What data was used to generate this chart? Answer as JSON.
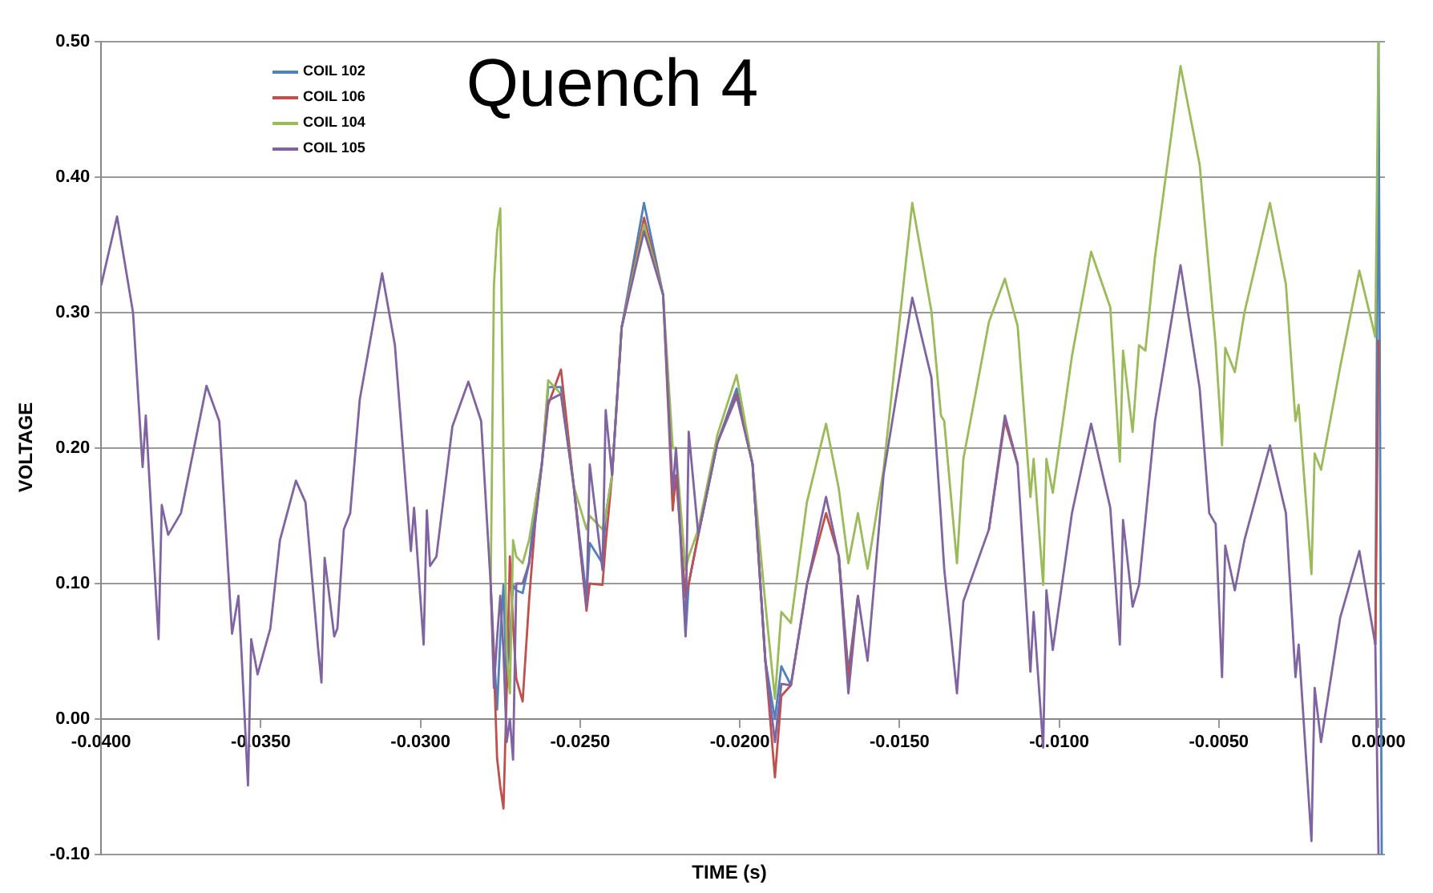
{
  "chart_data": {
    "type": "line",
    "title": "Quench 4",
    "xlabel": "TIME (s)",
    "ylabel": "VOLTAGE",
    "x": [
      -0.04,
      -0.0395,
      -0.039,
      -0.0387,
      -0.0386,
      -0.0384,
      -0.0382,
      -0.0381,
      -0.0379,
      -0.0375,
      -0.0367,
      -0.0363,
      -0.0359,
      -0.0357,
      -0.0356,
      -0.0354,
      -0.0353,
      -0.0351,
      -0.0347,
      -0.0344,
      -0.0339,
      -0.0336,
      -0.0332,
      -0.0331,
      -0.033,
      -0.0327,
      -0.0326,
      -0.0324,
      -0.0322,
      -0.0319,
      -0.0312,
      -0.0308,
      -0.0303,
      -0.0302,
      -0.0299,
      -0.0298,
      -0.0297,
      -0.0295,
      -0.029,
      -0.0285,
      -0.0281,
      -0.0278,
      -0.0277,
      -0.0276,
      -0.0275,
      -0.0274,
      -0.0273,
      -0.0272,
      -0.0271,
      -0.027,
      -0.0268,
      -0.0266,
      -0.0264,
      -0.0262,
      -0.026,
      -0.0256,
      -0.0252,
      -0.0248,
      -0.0247,
      -0.0243,
      -0.0242,
      -0.024,
      -0.0237,
      -0.023,
      -0.0224,
      -0.0221,
      -0.022,
      -0.0217,
      -0.0216,
      -0.0213,
      -0.0207,
      -0.0201,
      -0.0196,
      -0.0192,
      -0.0189,
      -0.0187,
      -0.0184,
      -0.0179,
      -0.0173,
      -0.0169,
      -0.0166,
      -0.0163,
      -0.016,
      -0.0155,
      -0.0146,
      -0.014,
      -0.0137,
      -0.0136,
      -0.0132,
      -0.013,
      -0.0122,
      -0.0117,
      -0.0113,
      -0.0109,
      -0.0108,
      -0.0105,
      -0.0104,
      -0.0102,
      -0.0096,
      -0.009,
      -0.0084,
      -0.0081,
      -0.008,
      -0.0077,
      -0.0075,
      -0.0073,
      -0.007,
      -0.0062,
      -0.0056,
      -0.0053,
      -0.0051,
      -0.0049,
      -0.0048,
      -0.0045,
      -0.0042,
      -0.0034,
      -0.0029,
      -0.0026,
      -0.0025,
      -0.0021,
      -0.002,
      -0.0018,
      -0.0012,
      -0.0006,
      -0.0001,
      0,
      0.0001
    ],
    "series": [
      {
        "name": "COIL 102",
        "color": "#4f81bd",
        "values": [
          null,
          null,
          null,
          null,
          null,
          null,
          null,
          null,
          null,
          null,
          null,
          null,
          null,
          null,
          null,
          null,
          null,
          null,
          null,
          null,
          null,
          null,
          null,
          null,
          null,
          null,
          null,
          null,
          null,
          null,
          null,
          null,
          null,
          null,
          null,
          null,
          null,
          null,
          null,
          null,
          null,
          0.099,
          0.05,
          0.007,
          0.06,
          0.099,
          0.023,
          0.06,
          0.099,
          0.095,
          0.093,
          0.115,
          0.16,
          0.188,
          0.245,
          0.245,
          0.172,
          0.09,
          0.13,
          0.115,
          0.15,
          0.18,
          0.289,
          0.381,
          0.313,
          null,
          null,
          0.061,
          0.1,
          0.136,
          0.204,
          0.244,
          0.188,
          0.043,
          0.0,
          0.039,
          0.025,
          null,
          null,
          0.12,
          0.035,
          0.091,
          null,
          null,
          null,
          null,
          null,
          null,
          null,
          null,
          null,
          null,
          null,
          null,
          null,
          null,
          null,
          null,
          null,
          null,
          null,
          null,
          null,
          null,
          null,
          null,
          null,
          null,
          null,
          null,
          null,
          null,
          null,
          null,
          null,
          null,
          null,
          null,
          null,
          null,
          null,
          null,
          null,
          null,
          0.055,
          0.5,
          -0.1
        ]
      },
      {
        "name": "COIL 106",
        "color": "#c0504d",
        "values": [
          null,
          null,
          null,
          null,
          null,
          null,
          null,
          null,
          null,
          null,
          null,
          null,
          null,
          null,
          null,
          null,
          null,
          null,
          null,
          null,
          null,
          null,
          null,
          null,
          null,
          null,
          null,
          null,
          null,
          null,
          null,
          null,
          null,
          null,
          null,
          null,
          null,
          null,
          null,
          null,
          null,
          0.099,
          0.04,
          -0.029,
          -0.05,
          -0.066,
          0.02,
          0.12,
          0.07,
          0.03,
          0.013,
          0.087,
          0.147,
          0.188,
          0.232,
          0.258,
          0.172,
          0.08,
          0.1,
          0.099,
          0.13,
          0.18,
          0.289,
          0.37,
          0.313,
          0.154,
          0.18,
          0.09,
          0.1,
          0.136,
          0.204,
          0.24,
          0.188,
          0.043,
          -0.043,
          0.017,
          0.025,
          0.099,
          0.152,
          0.12,
          0.03,
          0.091,
          null,
          null,
          null,
          null,
          null,
          null,
          null,
          null,
          0.14,
          0.22,
          0.188,
          null,
          null,
          null,
          null,
          null,
          null,
          null,
          null,
          null,
          null,
          null,
          null,
          null,
          null,
          null,
          null,
          null,
          null,
          null,
          null,
          null,
          null,
          null,
          null,
          null,
          null,
          null,
          null,
          null,
          null,
          null,
          0.055,
          0.28,
          null
        ]
      },
      {
        "name": "COIL 104",
        "color": "#9bbb59",
        "values": [
          null,
          null,
          null,
          null,
          null,
          null,
          null,
          null,
          null,
          null,
          null,
          null,
          null,
          null,
          null,
          null,
          null,
          null,
          null,
          null,
          null,
          null,
          null,
          null,
          null,
          null,
          null,
          null,
          null,
          null,
          null,
          null,
          null,
          null,
          null,
          null,
          null,
          null,
          null,
          null,
          null,
          0.099,
          0.32,
          0.36,
          0.377,
          0.2,
          0.05,
          0.019,
          0.132,
          0.12,
          0.115,
          0.132,
          0.16,
          0.188,
          0.25,
          0.24,
          0.172,
          0.14,
          0.15,
          0.14,
          0.15,
          0.18,
          0.289,
          0.365,
          0.313,
          0.2,
          0.2,
          0.11,
          0.12,
          0.14,
          0.21,
          0.254,
          0.188,
          0.085,
          0.015,
          0.079,
          0.071,
          0.16,
          0.218,
          0.17,
          0.115,
          0.152,
          0.111,
          0.184,
          0.381,
          0.301,
          0.224,
          0.22,
          0.115,
          0.192,
          0.293,
          0.325,
          0.29,
          0.164,
          0.192,
          0.099,
          0.192,
          0.167,
          0.268,
          0.345,
          0.304,
          0.19,
          0.272,
          0.212,
          0.276,
          0.272,
          0.341,
          0.482,
          0.409,
          0.329,
          0.276,
          0.202,
          0.274,
          0.256,
          0.3,
          0.381,
          0.321,
          0.22,
          0.232,
          0.107,
          0.196,
          0.184,
          0.26,
          0.331,
          0.282,
          0.5,
          null
        ]
      },
      {
        "name": "COIL 105",
        "color": "#8064a2",
        "values": [
          0.32,
          0.371,
          0.3,
          0.186,
          0.224,
          0.14,
          0.059,
          0.158,
          0.136,
          0.152,
          0.246,
          0.22,
          0.063,
          0.091,
          0.047,
          -0.049,
          0.059,
          0.033,
          0.067,
          0.132,
          0.176,
          0.16,
          0.051,
          0.027,
          0.119,
          0.061,
          0.067,
          0.14,
          0.152,
          0.236,
          0.329,
          0.276,
          0.124,
          0.156,
          0.055,
          0.154,
          0.113,
          0.12,
          0.216,
          0.249,
          0.22,
          0.099,
          0.023,
          0.06,
          0.091,
          0.05,
          -0.017,
          0.0,
          -0.03,
          0.1,
          0.1,
          0.115,
          0.147,
          0.188,
          0.235,
          0.24,
          0.172,
          0.083,
          0.188,
          0.11,
          0.228,
          0.18,
          0.289,
          0.36,
          0.313,
          0.168,
          0.2,
          0.061,
          0.212,
          0.136,
          0.204,
          0.238,
          0.188,
          0.043,
          -0.017,
          0.026,
          0.025,
          0.099,
          0.164,
          0.12,
          0.019,
          0.091,
          0.043,
          0.18,
          0.311,
          0.252,
          0.148,
          0.111,
          0.019,
          0.087,
          0.14,
          0.224,
          0.188,
          0.035,
          0.079,
          -0.021,
          0.095,
          0.051,
          0.152,
          0.218,
          0.156,
          0.055,
          0.147,
          0.083,
          0.099,
          0.147,
          0.22,
          0.335,
          0.244,
          0.152,
          0.144,
          0.031,
          0.128,
          0.095,
          0.132,
          0.202,
          0.152,
          0.031,
          0.055,
          -0.09,
          0.023,
          -0.017,
          0.075,
          0.124,
          0.055,
          -0.1,
          null
        ]
      }
    ],
    "xlim": [
      -0.04,
      0.0002
    ],
    "xticks": [
      {
        "value": -0.04,
        "label": "-0.0400"
      },
      {
        "value": -0.035,
        "label": "-0.0350"
      },
      {
        "value": -0.03,
        "label": "-0.0300"
      },
      {
        "value": -0.025,
        "label": "-0.0250"
      },
      {
        "value": -0.02,
        "label": "-0.0200"
      },
      {
        "value": -0.015,
        "label": "-0.0150"
      },
      {
        "value": -0.01,
        "label": "-0.0100"
      },
      {
        "value": -0.005,
        "label": "-0.0050"
      },
      {
        "value": 0,
        "label": "0.0000"
      }
    ],
    "ylim": [
      -0.1,
      0.5
    ],
    "yticks": [
      {
        "value": -0.1,
        "label": "-0.10"
      },
      {
        "value": 0,
        "label": "0.00"
      },
      {
        "value": 0.1,
        "label": "0.10"
      },
      {
        "value": 0.2,
        "label": "0.20"
      },
      {
        "value": 0.3,
        "label": "0.30"
      },
      {
        "value": 0.4,
        "label": "0.40"
      },
      {
        "value": 0.5,
        "label": "0.50"
      }
    ],
    "grid": "y",
    "legend": "top left",
    "marker": "none",
    "line_style": "solid"
  }
}
